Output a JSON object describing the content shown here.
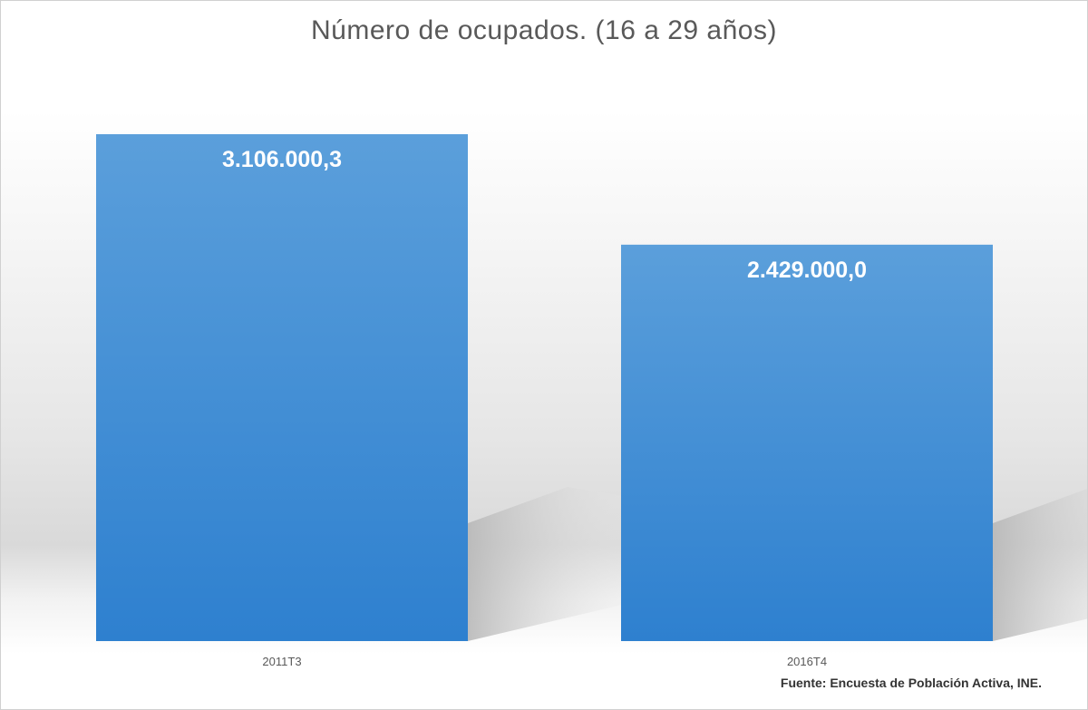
{
  "chart_data": {
    "type": "bar",
    "title": "Número de ocupados. (16 a 29 años)",
    "categories": [
      "2011T3",
      "2016T4"
    ],
    "values": [
      3106000.3,
      2429000.0
    ],
    "data_labels": [
      "3.106.000,3",
      "2.429.000,0"
    ],
    "ylim": [
      0,
      3500000
    ],
    "grid": false,
    "legend": "none",
    "bar_color": "#4a90d9"
  },
  "source_text": "Fuente: Encuesta de Población Activa, INE."
}
